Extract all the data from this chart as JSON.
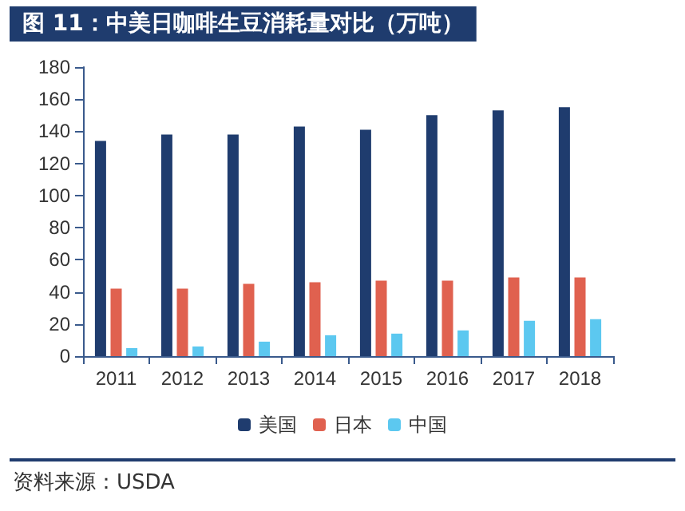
{
  "chart_data": {
    "type": "bar",
    "title": "图 11：中美日咖啡生豆消耗量对比（万吨）",
    "categories": [
      "2011",
      "2012",
      "2013",
      "2014",
      "2015",
      "2016",
      "2017",
      "2018"
    ],
    "series": [
      {
        "name": "美国",
        "color": "#1f3c6e",
        "values": [
          134,
          138,
          138,
          143,
          141,
          150,
          153,
          155
        ]
      },
      {
        "name": "日本",
        "color": "#e0614f",
        "values": [
          42,
          42,
          45,
          46,
          47,
          47,
          49,
          49
        ]
      },
      {
        "name": "中国",
        "color": "#5cc8f0",
        "values": [
          5,
          6,
          9,
          13,
          14,
          16,
          22,
          23
        ]
      }
    ],
    "ylim": [
      0,
      180
    ],
    "yticks": [
      0,
      20,
      40,
      60,
      80,
      100,
      120,
      140,
      160,
      180
    ],
    "grid": false,
    "legend": "bottom",
    "annotations": [
      "资料来源：USDA"
    ]
  }
}
